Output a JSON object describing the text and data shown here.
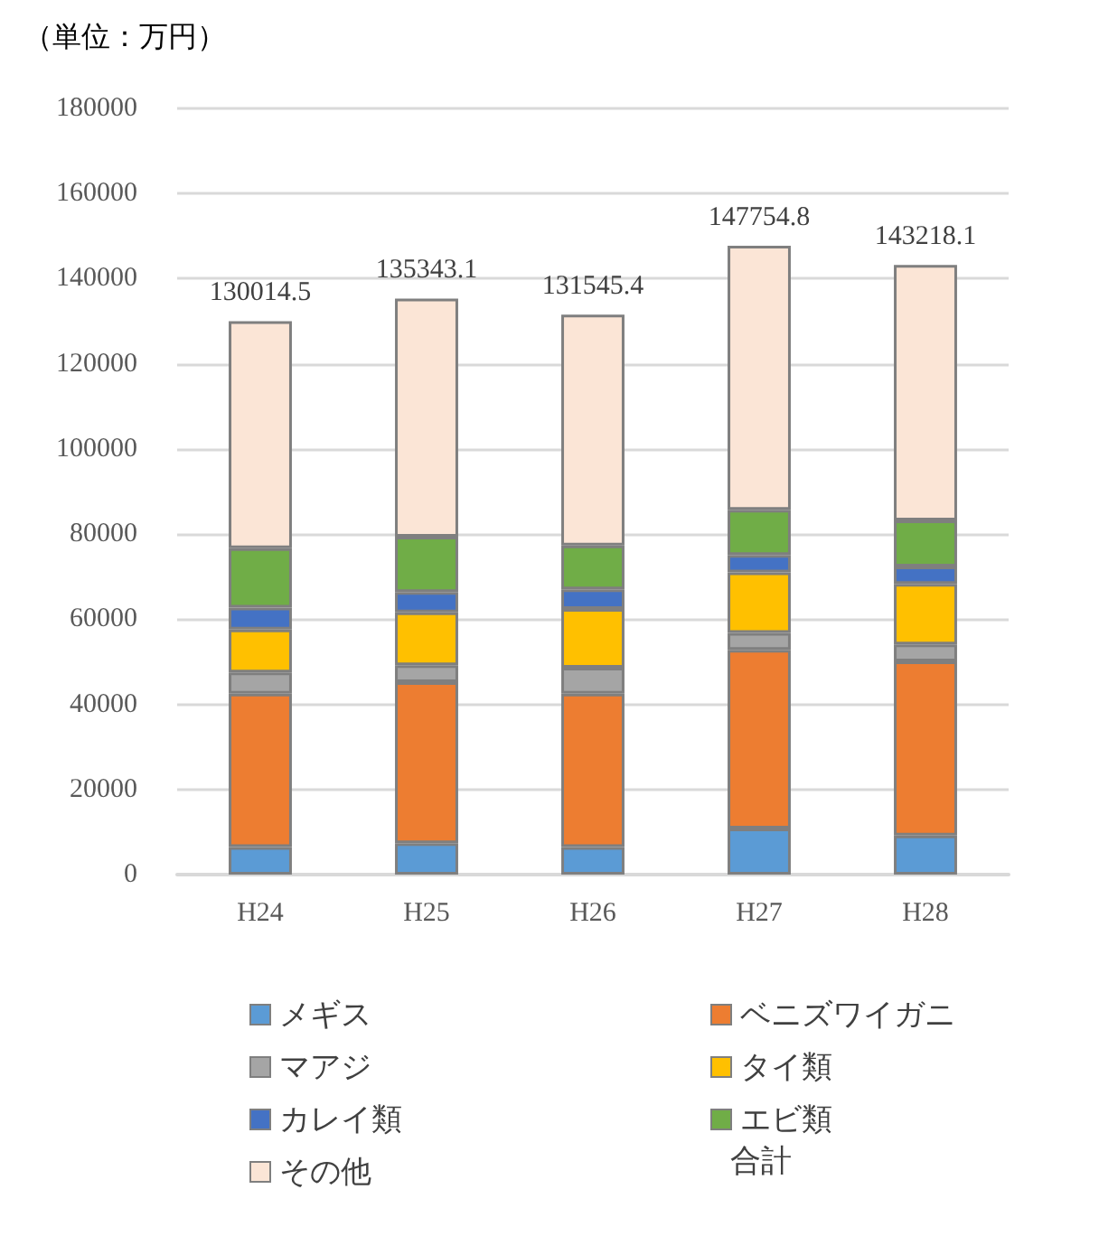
{
  "chart_data": {
    "type": "bar",
    "title": "（単位：万円）",
    "categories": [
      "H24",
      "H25",
      "H26",
      "H27",
      "H28"
    ],
    "stacked": true,
    "ylim": [
      0,
      180000
    ],
    "yticks": [
      0,
      20000,
      40000,
      60000,
      80000,
      100000,
      120000,
      140000,
      160000,
      180000
    ],
    "grid": "y",
    "legend": "bottom",
    "series": [
      {
        "name": "メギス",
        "color": "#5b9bd5",
        "values": [
          6500,
          7400,
          6500,
          10800,
          9200
        ]
      },
      {
        "name": "ベニズワイガニ",
        "color": "#ed7d31",
        "values": [
          36000,
          37800,
          36000,
          42000,
          40900
        ]
      },
      {
        "name": "マアジ",
        "color": "#a5a5a5",
        "values": [
          5000,
          4000,
          6100,
          4000,
          4000
        ]
      },
      {
        "name": "タイ類",
        "color": "#ffc000",
        "values": [
          10100,
          12400,
          13800,
          14200,
          14200
        ]
      },
      {
        "name": "カレイ類",
        "color": "#4472c4",
        "values": [
          5100,
          4800,
          4600,
          4100,
          4100
        ]
      },
      {
        "name": "エビ類",
        "color": "#70ad47",
        "values": [
          14000,
          13000,
          10300,
          10600,
          10800
        ]
      },
      {
        "name": "その他",
        "color": "#fbe5d6",
        "values": [
          53314.5,
          55943.1,
          54245.4,
          62054.8,
          60018.1
        ]
      }
    ],
    "totals": [
      "130014.5",
      "135343.1",
      "131545.4",
      "147754.8",
      "143218.1"
    ],
    "annotations": [
      "合計"
    ]
  }
}
